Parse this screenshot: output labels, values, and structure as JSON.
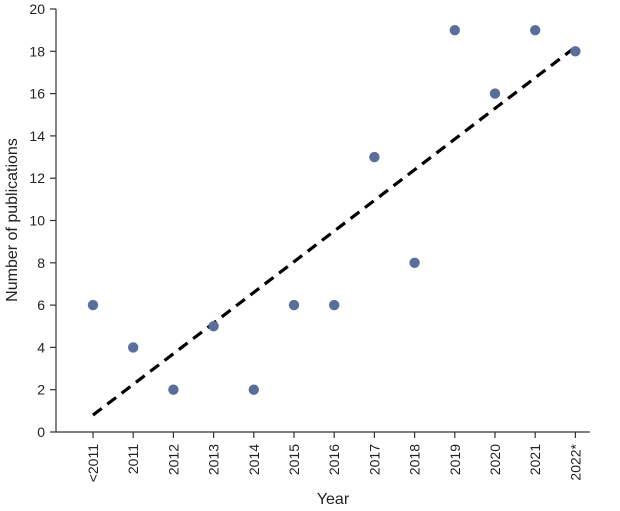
{
  "chart_data": {
    "type": "scatter",
    "title": "",
    "xlabel": "Year",
    "ylabel": "Number of publications",
    "categories": [
      "<2011",
      "2011",
      "2012",
      "2013",
      "2014",
      "2015",
      "2016",
      "2017",
      "2018",
      "2019",
      "2020",
      "2021",
      "2022*"
    ],
    "series": [
      {
        "values": [
          6,
          4,
          2,
          5,
          2,
          6,
          6,
          13,
          8,
          19,
          16,
          19,
          18
        ]
      }
    ],
    "trendline": {
      "style": "dashed",
      "start": 0.8,
      "end": 18.2
    },
    "ylim": [
      0,
      20
    ],
    "yticks": [
      0,
      2,
      4,
      6,
      8,
      10,
      12,
      14,
      16,
      18,
      20
    ],
    "grid": false,
    "legend": "none",
    "colors": {
      "points": "#5a6e9c",
      "trendline": "#000000",
      "axis": "#333333"
    }
  }
}
